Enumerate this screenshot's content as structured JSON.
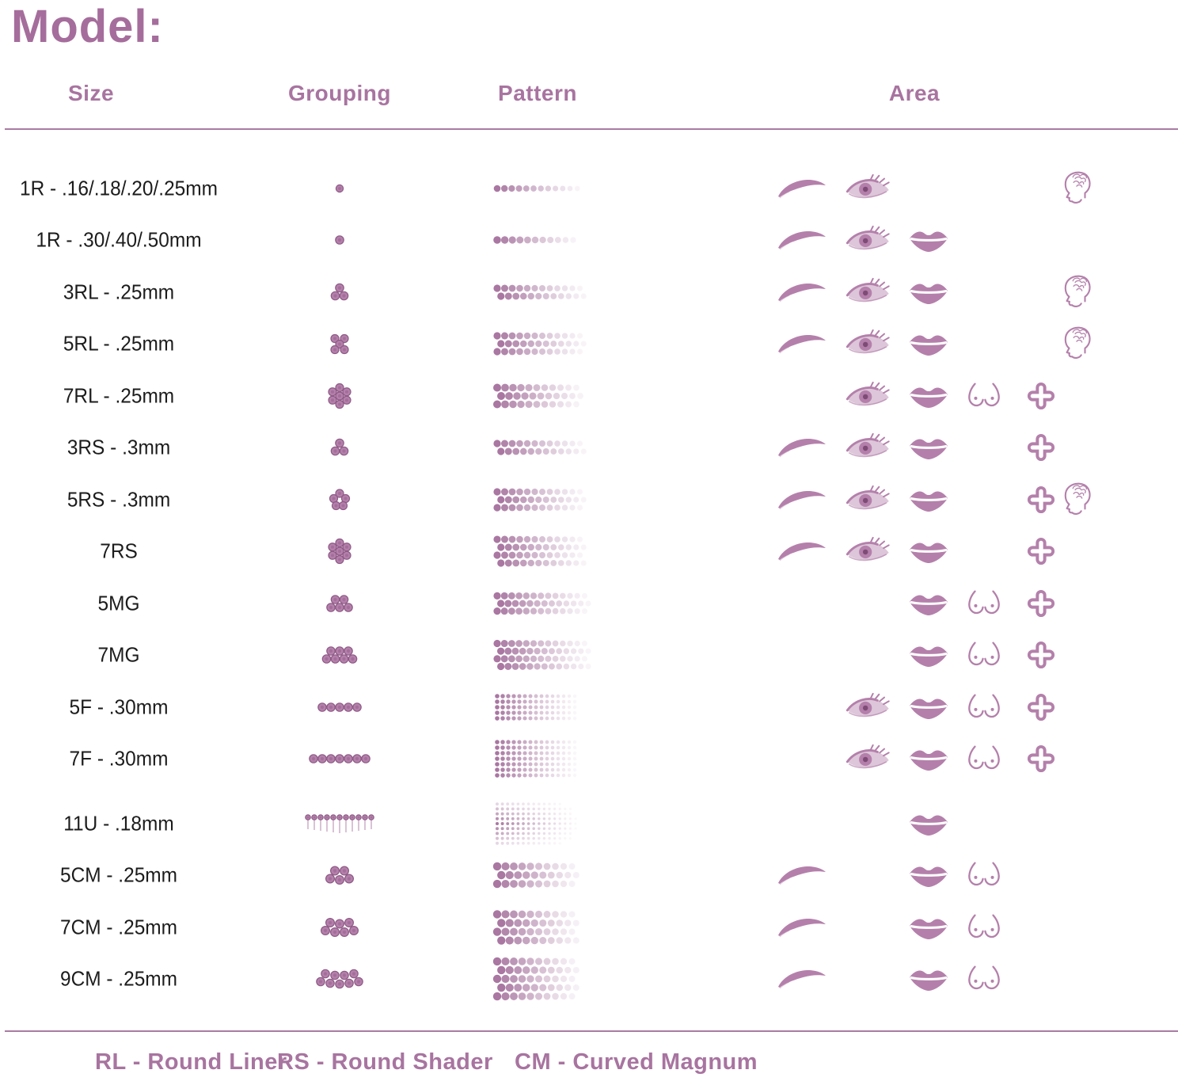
{
  "title": "Model:",
  "columns": {
    "size": "Size",
    "grouping": "Grouping",
    "pattern": "Pattern",
    "area": "Area"
  },
  "colors": {
    "accent_text": "#a56d9c",
    "icon": "#b480ab",
    "icon_dark": "#8e5a86",
    "pattern_dot": "#a4709c",
    "rule": "#a97ba2",
    "size_text": "#1c1c1c"
  },
  "area_icon_names": [
    "eyebrow",
    "eye",
    "lips",
    "breast",
    "cross",
    "head"
  ],
  "rows": [
    {
      "size": "1R - .16/.18/.20/.25mm",
      "grouping": "dot1",
      "pattern": {
        "rows": 1,
        "cols": 13,
        "r": 4.3,
        "pitch": 9.2
      },
      "areas": [
        "eyebrow",
        "eye",
        "head"
      ]
    },
    {
      "size": "1R - .30/.40/.50mm",
      "grouping": "dot1b",
      "pattern": {
        "rows": 1,
        "cols": 12,
        "r": 4.8,
        "pitch": 9.6
      },
      "areas": [
        "eyebrow",
        "eye",
        "lips"
      ]
    },
    {
      "size": "3RL - .25mm",
      "grouping": "tri3",
      "pattern": {
        "rows": 2,
        "cols": 13,
        "r": 4.6,
        "pitch": 9.5,
        "stagger": true
      },
      "areas": [
        "eyebrow",
        "eye",
        "lips",
        "head"
      ]
    },
    {
      "size": "5RL - .25mm",
      "grouping": "quin5",
      "pattern": {
        "rows": 3,
        "cols": 13,
        "r": 4.6,
        "pitch": 9.5,
        "stagger": true
      },
      "areas": [
        "eyebrow",
        "eye",
        "lips",
        "head"
      ]
    },
    {
      "size": "7RL - .25mm",
      "grouping": "hex7",
      "pattern": {
        "rows": 3,
        "cols": 12,
        "r": 5.0,
        "pitch": 10,
        "stagger": true
      },
      "areas": [
        "eye",
        "lips",
        "breast",
        "cross"
      ]
    },
    {
      "size": "3RS - .3mm",
      "grouping": "tri3",
      "pattern": {
        "rows": 2,
        "cols": 13,
        "r": 4.6,
        "pitch": 9.5,
        "stagger": true
      },
      "areas": [
        "eyebrow",
        "eye",
        "lips",
        "cross"
      ]
    },
    {
      "size": "5RS - .3mm",
      "grouping": "pent5",
      "pattern": {
        "rows": 3,
        "cols": 13,
        "r": 4.6,
        "pitch": 9.5,
        "stagger": true
      },
      "areas": [
        "eyebrow",
        "eye",
        "lips",
        "cross",
        "head"
      ]
    },
    {
      "size": "7RS",
      "grouping": "hex7",
      "pattern": {
        "rows": 4,
        "cols": 13,
        "r": 4.6,
        "pitch": 9.5,
        "stagger": true
      },
      "areas": [
        "eyebrow",
        "eye",
        "lips",
        "cross"
      ]
    },
    {
      "size": "5MG",
      "grouping": "mag5",
      "pattern": {
        "rows": 3,
        "cols": 14,
        "r": 4.6,
        "pitch": 9.2,
        "stagger": true
      },
      "areas": [
        "lips",
        "breast",
        "cross"
      ]
    },
    {
      "size": "7MG",
      "grouping": "mag7",
      "pattern": {
        "rows": 4,
        "cols": 14,
        "r": 4.6,
        "pitch": 9.2,
        "stagger": true
      },
      "areas": [
        "lips",
        "breast",
        "cross"
      ]
    },
    {
      "size": "5F - .30mm",
      "grouping": "flat5",
      "pattern": {
        "rows": 5,
        "cols": 16,
        "r": 2.8,
        "pitch": 7,
        "vpitch": 7
      },
      "areas": [
        "eye",
        "lips",
        "breast",
        "cross"
      ]
    },
    {
      "size": "7F - .30mm",
      "grouping": "flat7",
      "pattern": {
        "rows": 7,
        "cols": 16,
        "r": 2.8,
        "pitch": 7,
        "vpitch": 7
      },
      "areas": [
        "eye",
        "lips",
        "breast",
        "cross"
      ]
    },
    {
      "size": "11U - .18mm",
      "grouping": "pins11",
      "pattern": {
        "rows": 9,
        "cols": 17,
        "r": 2.0,
        "pitch": 6.6,
        "vpitch": 6.2,
        "soft": true
      },
      "areas": [
        "lips"
      ]
    },
    {
      "size": "5CM - .25mm",
      "grouping": "cm5",
      "pattern": {
        "rows": 3,
        "cols": 11,
        "r": 5.2,
        "pitch": 10.5,
        "stagger": true
      },
      "areas": [
        "eyebrow",
        "lips",
        "breast"
      ]
    },
    {
      "size": "7CM - .25mm",
      "grouping": "cm7",
      "pattern": {
        "rows": 4,
        "cols": 11,
        "r": 5.2,
        "pitch": 10.5,
        "stagger": true
      },
      "areas": [
        "eyebrow",
        "lips",
        "breast"
      ]
    },
    {
      "size": "9CM - .25mm",
      "grouping": "cm9",
      "pattern": {
        "rows": 5,
        "cols": 11,
        "r": 5.2,
        "pitch": 10.5,
        "stagger": true
      },
      "areas": [
        "eyebrow",
        "lips",
        "breast"
      ]
    }
  ],
  "legend": [
    {
      "label": "RL - Round Liner"
    },
    {
      "label": "RS - Round Shader"
    },
    {
      "label": "CM - Curved Magnum"
    }
  ]
}
